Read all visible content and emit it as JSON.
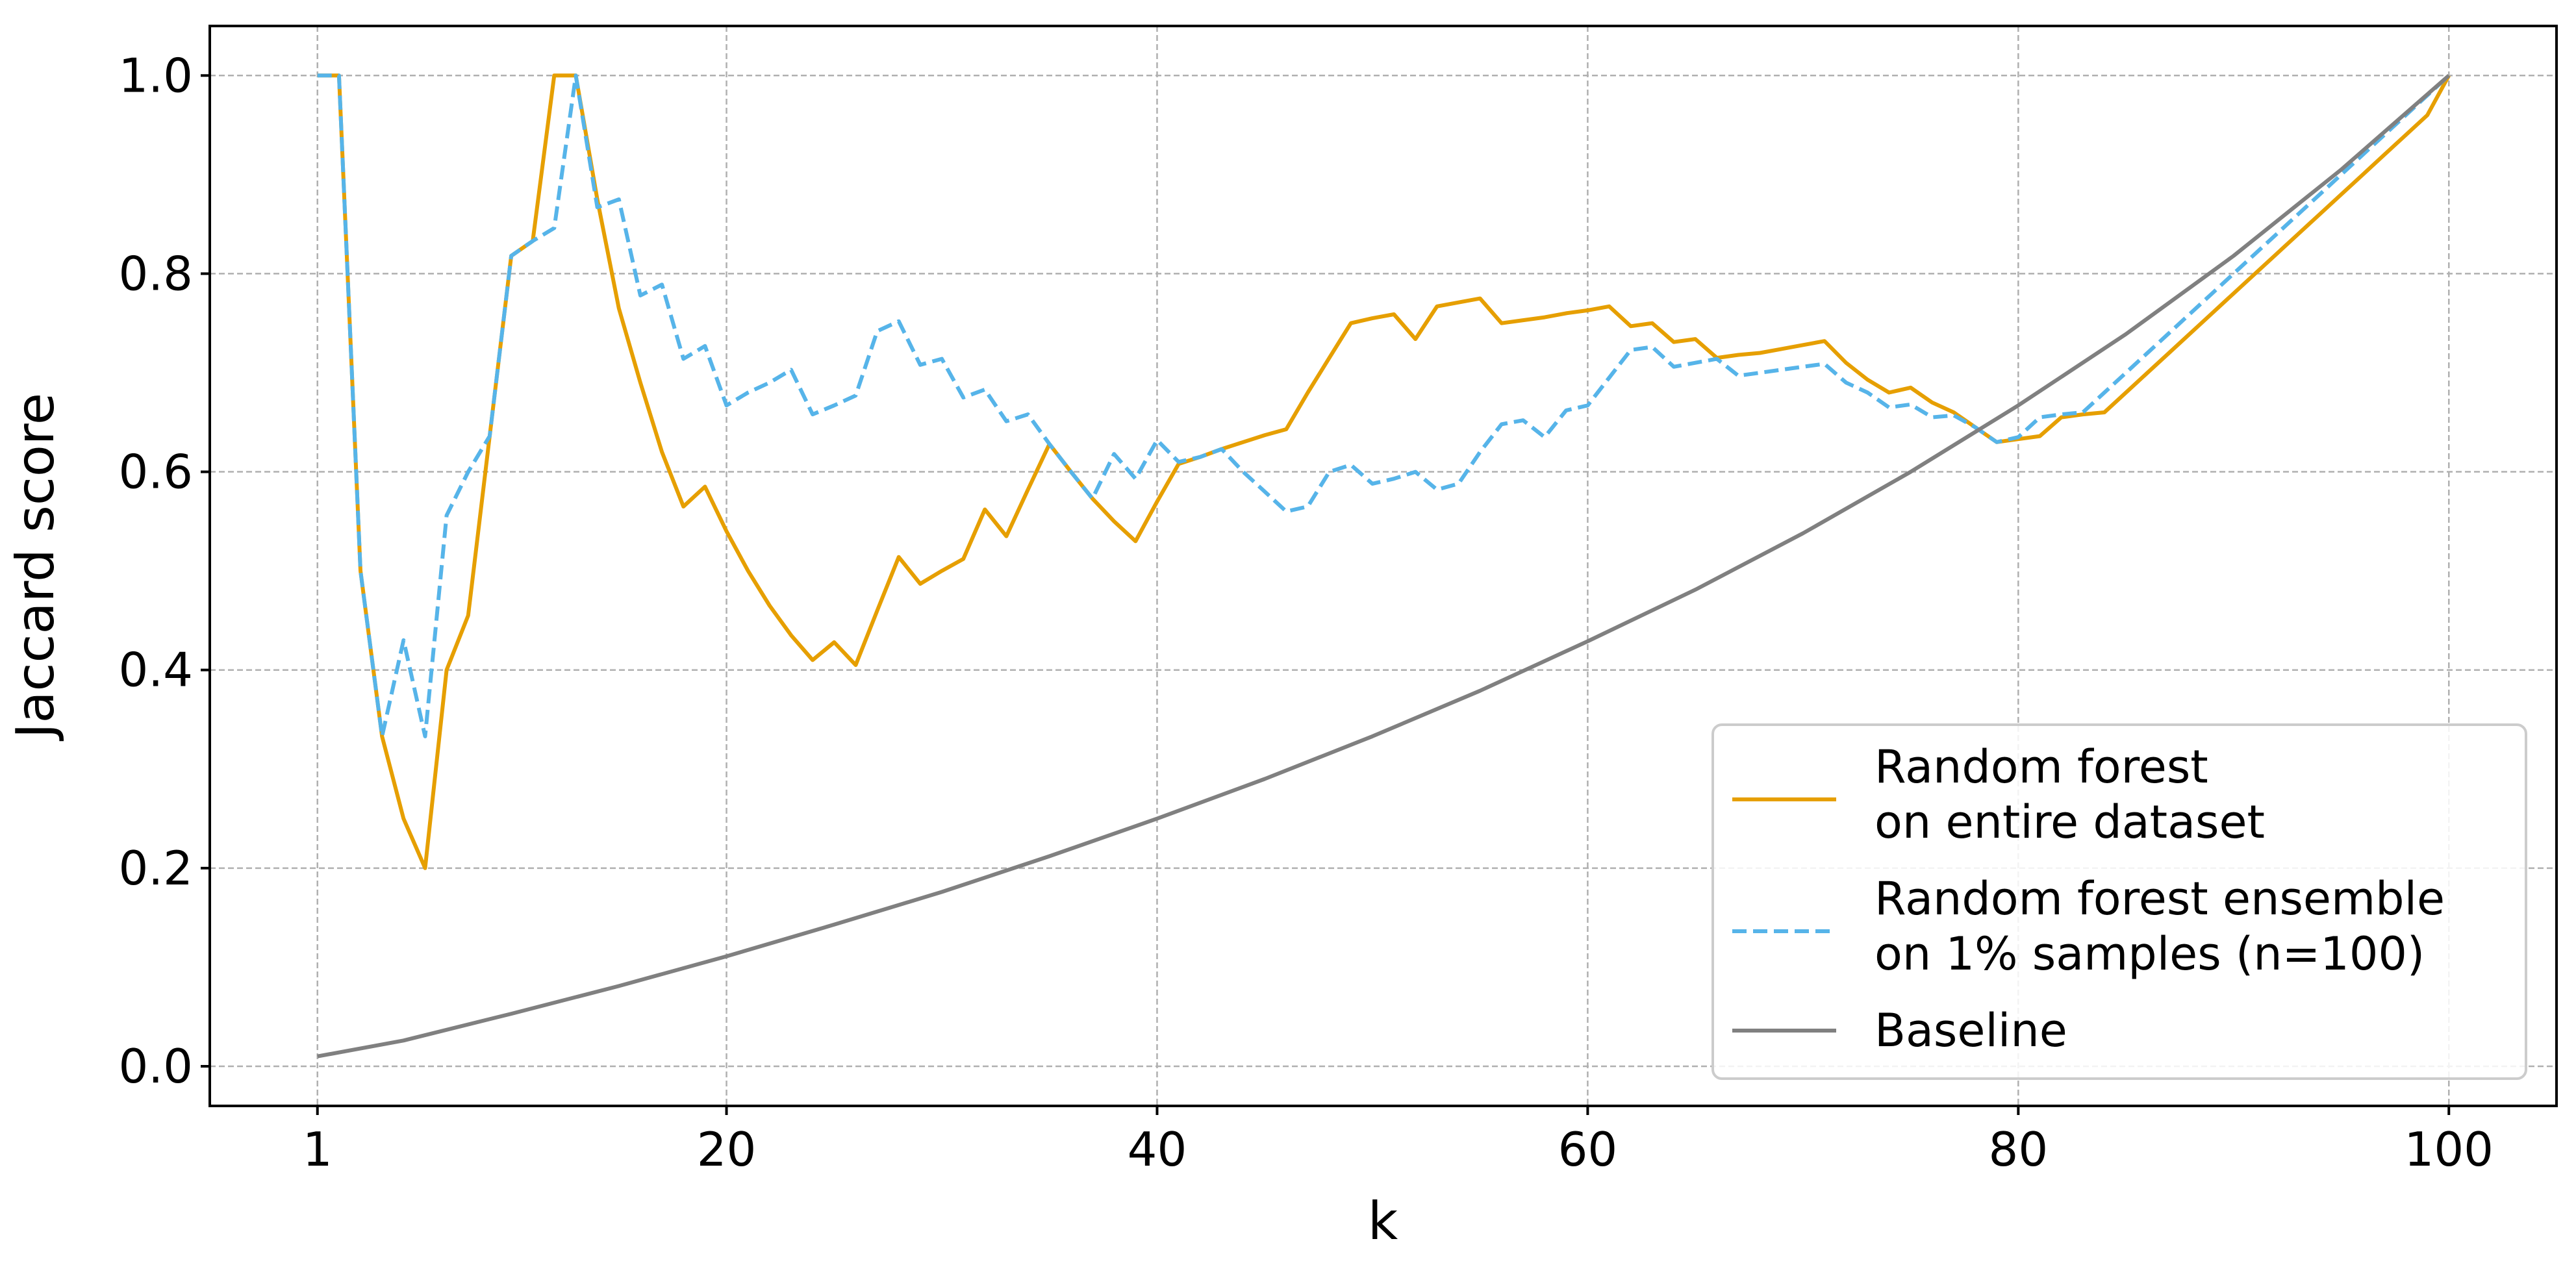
{
  "chart_data": {
    "type": "line",
    "title": "",
    "xlabel": "k",
    "ylabel": "Jaccard score",
    "xlim": [
      -4,
      105
    ],
    "ylim": [
      -0.04,
      1.05
    ],
    "xticks": [
      1,
      20,
      40,
      60,
      80,
      100
    ],
    "xtick_labels": [
      "1",
      "20",
      "40",
      "60",
      "80",
      "100"
    ],
    "yticks": [
      0.0,
      0.2,
      0.4,
      0.6,
      0.8,
      1.0
    ],
    "ytick_labels": [
      "0.0",
      "0.2",
      "0.4",
      "0.6",
      "0.8",
      "1.0"
    ],
    "grid": true,
    "legend_position": "lower right",
    "series": [
      {
        "name": "Random forest\non entire dataset",
        "color": "#e69f00",
        "dash": "solid",
        "x": [
          1,
          2,
          3,
          4,
          5,
          6,
          7,
          8,
          9,
          10,
          11,
          12,
          13,
          14,
          15,
          16,
          17,
          18,
          19,
          20,
          21,
          22,
          23,
          24,
          25,
          26,
          27,
          28,
          29,
          30,
          31,
          32,
          33,
          34,
          35,
          36,
          37,
          38,
          39,
          40,
          41,
          42,
          43,
          44,
          45,
          46,
          47,
          48,
          49,
          50,
          51,
          52,
          53,
          54,
          55,
          56,
          57,
          58,
          59,
          60,
          61,
          62,
          63,
          64,
          65,
          66,
          67,
          68,
          69,
          70,
          71,
          72,
          73,
          74,
          75,
          76,
          77,
          78,
          79,
          80,
          81,
          82,
          83,
          84,
          85,
          86,
          87,
          88,
          89,
          90,
          91,
          92,
          93,
          94,
          95,
          96,
          97,
          98,
          99,
          100
        ],
        "y": [
          1.0,
          1.0,
          0.5,
          0.333,
          0.25,
          0.2,
          0.4,
          0.455,
          0.636,
          0.818,
          0.833,
          1.0,
          1.0,
          0.875,
          0.765,
          0.69,
          0.62,
          0.565,
          0.585,
          0.54,
          0.5,
          0.465,
          0.435,
          0.41,
          0.428,
          0.405,
          0.46,
          0.514,
          0.487,
          0.5,
          0.512,
          0.562,
          0.535,
          0.582,
          0.628,
          0.6,
          0.573,
          0.55,
          0.53,
          0.57,
          0.608,
          0.615,
          0.623,
          0.63,
          0.637,
          0.643,
          0.68,
          0.715,
          0.75,
          0.755,
          0.759,
          0.734,
          0.767,
          0.771,
          0.775,
          0.75,
          0.753,
          0.756,
          0.76,
          0.763,
          0.767,
          0.747,
          0.75,
          0.731,
          0.734,
          0.715,
          0.718,
          0.72,
          0.724,
          0.728,
          0.732,
          0.71,
          0.693,
          0.68,
          0.685,
          0.67,
          0.66,
          0.645,
          0.63,
          0.633,
          0.636,
          0.655,
          0.658,
          0.66,
          0.68,
          0.7,
          0.72,
          0.74,
          0.76,
          0.78,
          0.8,
          0.82,
          0.84,
          0.86,
          0.88,
          0.9,
          0.92,
          0.94,
          0.96,
          1.0
        ]
      },
      {
        "name": "Random forest ensemble\non 1% samples (n=100)",
        "color": "#56b4e9",
        "dash": "dashed",
        "x": [
          1,
          2,
          3,
          4,
          5,
          6,
          7,
          8,
          9,
          10,
          11,
          12,
          13,
          14,
          15,
          16,
          17,
          18,
          19,
          20,
          21,
          22,
          23,
          24,
          25,
          26,
          27,
          28,
          29,
          30,
          31,
          32,
          33,
          34,
          35,
          36,
          37,
          38,
          39,
          40,
          41,
          42,
          43,
          44,
          45,
          46,
          47,
          48,
          49,
          50,
          51,
          52,
          53,
          54,
          55,
          56,
          57,
          58,
          59,
          60,
          61,
          62,
          63,
          64,
          65,
          66,
          67,
          68,
          69,
          70,
          71,
          72,
          73,
          74,
          75,
          76,
          77,
          78,
          79,
          80,
          81,
          82,
          83,
          84,
          85,
          86,
          87,
          88,
          89,
          90,
          91,
          92,
          93,
          94,
          95,
          96,
          97,
          98,
          99,
          100
        ],
        "y": [
          1.0,
          1.0,
          0.5,
          0.333,
          0.43,
          0.333,
          0.556,
          0.6,
          0.636,
          0.818,
          0.833,
          0.846,
          1.0,
          0.867,
          0.875,
          0.778,
          0.789,
          0.714,
          0.727,
          0.667,
          0.68,
          0.69,
          0.703,
          0.658,
          0.667,
          0.677,
          0.742,
          0.752,
          0.708,
          0.714,
          0.675,
          0.683,
          0.651,
          0.658,
          0.628,
          0.6,
          0.573,
          0.618,
          0.593,
          0.632,
          0.61,
          0.615,
          0.623,
          0.6,
          0.58,
          0.56,
          0.565,
          0.6,
          0.607,
          0.588,
          0.593,
          0.6,
          0.582,
          0.588,
          0.62,
          0.648,
          0.652,
          0.635,
          0.662,
          0.667,
          0.695,
          0.723,
          0.726,
          0.706,
          0.71,
          0.714,
          0.697,
          0.7,
          0.703,
          0.706,
          0.709,
          0.69,
          0.68,
          0.665,
          0.668,
          0.655,
          0.657,
          0.645,
          0.63,
          0.635,
          0.655,
          0.658,
          0.66,
          0.68,
          0.7,
          0.72,
          0.74,
          0.76,
          0.78,
          0.8,
          0.82,
          0.84,
          0.86,
          0.88,
          0.9,
          0.92,
          0.94,
          0.96,
          0.98,
          1.0
        ]
      },
      {
        "name": "Baseline",
        "color": "#808080",
        "dash": "solid",
        "x": [
          1,
          5,
          10,
          15,
          20,
          25,
          30,
          35,
          40,
          45,
          50,
          55,
          60,
          65,
          70,
          75,
          80,
          85,
          90,
          95,
          100
        ],
        "y": [
          0.01,
          0.026,
          0.053,
          0.081,
          0.111,
          0.143,
          0.176,
          0.212,
          0.25,
          0.29,
          0.333,
          0.379,
          0.429,
          0.481,
          0.538,
          0.6,
          0.667,
          0.739,
          0.818,
          0.905,
          1.0
        ]
      }
    ]
  }
}
